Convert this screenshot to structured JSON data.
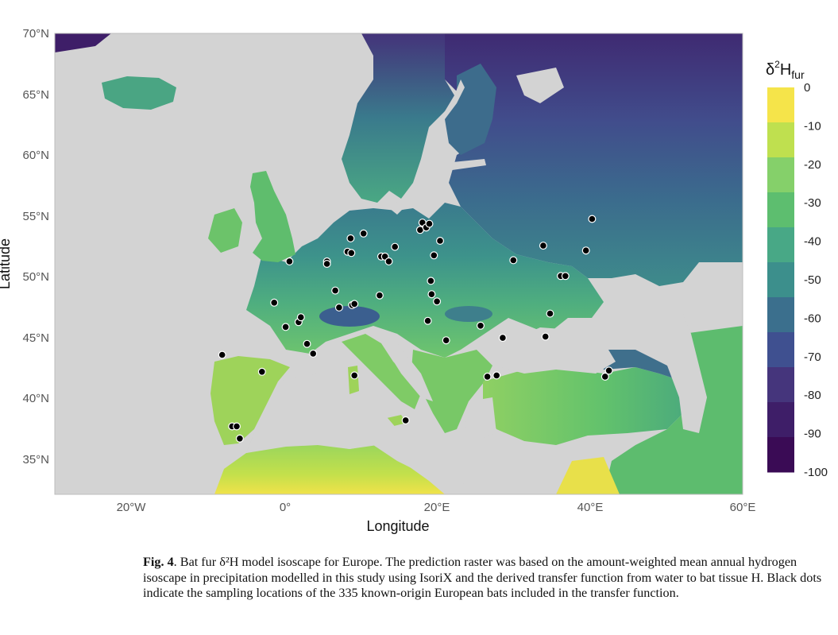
{
  "map": {
    "x_axis_title": "Longitude",
    "y_axis_title": "Latitude",
    "lon_ticks": [
      "20°W",
      "0°",
      "20°E",
      "40°E",
      "60°E"
    ],
    "lat_ticks": [
      "70°N",
      "65°N",
      "60°N",
      "55°N",
      "50°N",
      "45°N",
      "40°N",
      "35°N"
    ],
    "extent": {
      "lon": [
        -30,
        60
      ],
      "lat": [
        32,
        70
      ]
    },
    "background_color": "#d3d3d3",
    "point_style": "black dots with white outline",
    "legend": {
      "title_main": "δ",
      "title_sup": "2",
      "title_H": "H",
      "title_sub": "fur",
      "ticks": [
        "0",
        "-10",
        "-20",
        "-30",
        "-40",
        "-50",
        "-60",
        "-70",
        "-80",
        "-90",
        "-100"
      ],
      "colors": [
        "#f5e44a",
        "#bfe04f",
        "#85d06a",
        "#5dbe6f",
        "#48a886",
        "#3c8f8c",
        "#3b6f8d",
        "#3f5090",
        "#45357c",
        "#3e1e68",
        "#3a0b55"
      ]
    },
    "sampling_points": [
      {
        "lon": 0.7,
        "lat": 51.2
      },
      {
        "lon": -1.3,
        "lat": 47.8
      },
      {
        "lon": 0.2,
        "lat": 45.8
      },
      {
        "lon": 1.9,
        "lat": 46.2
      },
      {
        "lon": 2.2,
        "lat": 46.6
      },
      {
        "lon": 3.0,
        "lat": 44.4
      },
      {
        "lon": 3.8,
        "lat": 43.6
      },
      {
        "lon": -8.1,
        "lat": 43.5
      },
      {
        "lon": -2.9,
        "lat": 42.1
      },
      {
        "lon": -6.8,
        "lat": 37.6
      },
      {
        "lon": -6.2,
        "lat": 37.6
      },
      {
        "lon": -5.8,
        "lat": 36.6
      },
      {
        "lon": 5.6,
        "lat": 51.2
      },
      {
        "lon": 5.6,
        "lat": 51.0
      },
      {
        "lon": 8.3,
        "lat": 52.0
      },
      {
        "lon": 8.8,
        "lat": 51.9
      },
      {
        "lon": 8.7,
        "lat": 53.1
      },
      {
        "lon": 10.4,
        "lat": 53.5
      },
      {
        "lon": 6.7,
        "lat": 48.8
      },
      {
        "lon": 7.2,
        "lat": 47.4
      },
      {
        "lon": 8.9,
        "lat": 47.6
      },
      {
        "lon": 9.2,
        "lat": 47.7
      },
      {
        "lon": 9.2,
        "lat": 41.8
      },
      {
        "lon": 12.7,
        "lat": 51.6
      },
      {
        "lon": 13.2,
        "lat": 51.6
      },
      {
        "lon": 13.7,
        "lat": 51.2
      },
      {
        "lon": 14.5,
        "lat": 52.4
      },
      {
        "lon": 12.5,
        "lat": 48.4
      },
      {
        "lon": 17.8,
        "lat": 53.8
      },
      {
        "lon": 18.1,
        "lat": 54.4
      },
      {
        "lon": 18.6,
        "lat": 54.0
      },
      {
        "lon": 19.0,
        "lat": 54.3
      },
      {
        "lon": 20.4,
        "lat": 52.9
      },
      {
        "lon": 19.6,
        "lat": 51.7
      },
      {
        "lon": 19.2,
        "lat": 49.6
      },
      {
        "lon": 19.3,
        "lat": 48.5
      },
      {
        "lon": 20.0,
        "lat": 47.9
      },
      {
        "lon": 18.8,
        "lat": 46.3
      },
      {
        "lon": 21.2,
        "lat": 44.7
      },
      {
        "lon": 15.9,
        "lat": 38.1
      },
      {
        "lon": 25.7,
        "lat": 45.9
      },
      {
        "lon": 28.6,
        "lat": 44.9
      },
      {
        "lon": 26.6,
        "lat": 41.7
      },
      {
        "lon": 27.8,
        "lat": 41.8
      },
      {
        "lon": 30.0,
        "lat": 51.3
      },
      {
        "lon": 33.9,
        "lat": 52.5
      },
      {
        "lon": 36.2,
        "lat": 50.0
      },
      {
        "lon": 36.8,
        "lat": 50.0
      },
      {
        "lon": 34.8,
        "lat": 46.9
      },
      {
        "lon": 34.2,
        "lat": 45.0
      },
      {
        "lon": 40.3,
        "lat": 54.7
      },
      {
        "lon": 39.5,
        "lat": 52.1
      },
      {
        "lon": 42.0,
        "lat": 41.7
      },
      {
        "lon": 42.5,
        "lat": 42.2
      }
    ]
  },
  "caption": {
    "label": "Fig. 4",
    "text": ". Bat fur δ²H model isoscape for Europe. The prediction raster was based on the amount-weighted mean annual hydrogen isoscape in precipitation modelled in this study using IsoriX and the derived transfer function from water to bat tissue H. Black dots indicate the sampling locations of the 335 known-origin European bats included in the transfer function."
  }
}
